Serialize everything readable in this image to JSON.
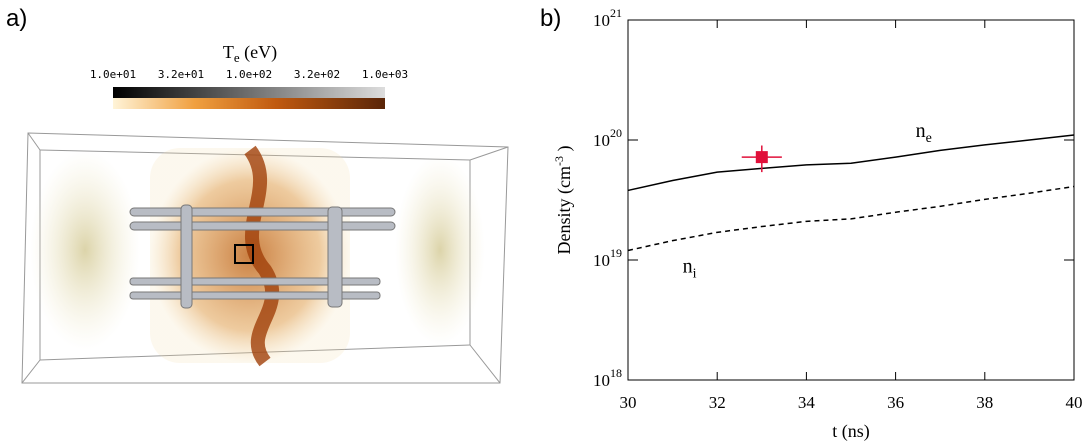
{
  "panel_a": {
    "label": "a)",
    "colorbar": {
      "title": "T",
      "title_subscript": "e",
      "title_suffix": " (eV)",
      "tick_labels": [
        "1.0e+01",
        "3.2e+01",
        "1.0e+02",
        "3.2e+02",
        "1.0e+03"
      ]
    }
  },
  "chart_data": {
    "type": "line",
    "panel_label": "b)",
    "xlabel": "t (ns)",
    "ylabel": {
      "text": "Density (cm",
      "superscript": "-3",
      "suffix": " )"
    },
    "log_y": true,
    "xlim": [
      30,
      40
    ],
    "ylim": [
      1e+18,
      1e+21
    ],
    "xticks": [
      30,
      32,
      34,
      36,
      38,
      40
    ],
    "yticks": [
      {
        "value": 1e+18,
        "label": "10",
        "exponent": "18"
      },
      {
        "value": 1e+19,
        "label": "10",
        "exponent": "19"
      },
      {
        "value": 1e+20,
        "label": "10",
        "exponent": "20"
      },
      {
        "value": 1e+21,
        "label": "10",
        "exponent": "21"
      }
    ],
    "x": [
      30,
      31,
      32,
      33,
      34,
      35,
      36,
      37,
      38,
      39,
      40
    ],
    "series": [
      {
        "label": "n",
        "subscript": "e",
        "color": "#000000",
        "dash": false,
        "values": [
          3.8e+19,
          4.6e+19,
          5.4e+19,
          5.8e+19,
          6.2e+19,
          6.4e+19,
          7.2e+19,
          8.2e+19,
          9.1e+19,
          1e+20,
          1.1e+20
        ]
      },
      {
        "label": "n",
        "subscript": "i",
        "color": "#000000",
        "dash": true,
        "values": [
          1.2e+19,
          1.45e+19,
          1.7e+19,
          1.9e+19,
          2.1e+19,
          2.2e+19,
          2.5e+19,
          2.8e+19,
          3.2e+19,
          3.6e+19,
          4.1e+19
        ]
      }
    ],
    "points": [
      {
        "x": 33,
        "y": 7.2e+19,
        "xerr": 0.45,
        "yerr": 1.8e+19,
        "color": "#e0103a"
      }
    ]
  }
}
